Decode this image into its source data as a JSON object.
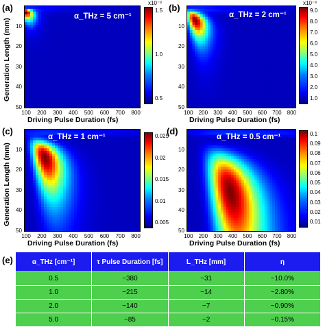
{
  "panels": [
    {
      "label": "(a)",
      "annotation": "α_THz = 5 cm⁻¹",
      "cb_exponent": "x10⁻³",
      "cb_ticks": [
        "1.5",
        "1.0",
        "0.5"
      ]
    },
    {
      "label": "(b)",
      "annotation": "α_THz = 2 cm⁻¹",
      "cb_exponent": "x10⁻³",
      "cb_ticks": [
        "9.0",
        "8.0",
        "7.0",
        "6.0",
        "5.0",
        "4.0",
        "3.0",
        "2.0",
        "1.0"
      ]
    },
    {
      "label": "(c)",
      "annotation": "α_THz = 1 cm⁻¹",
      "cb_exponent": "",
      "cb_ticks": [
        "0.025",
        "0.02",
        "0.015",
        "0.01",
        "0.005"
      ]
    },
    {
      "label": "(d)",
      "annotation": "α_THz = 0.5 cm⁻¹",
      "cb_exponent": "",
      "cb_ticks": [
        "0.1",
        "0.09",
        "0.08",
        "0.07",
        "0.06",
        "0.05",
        "0.04",
        "0.03",
        "0.02",
        "0.01"
      ]
    }
  ],
  "axes": {
    "xlabel": "Driving Pulse Duration (fs)",
    "ylabel": "Generation Length (mm)",
    "xticks": [
      "100",
      "200",
      "300",
      "400",
      "500",
      "600",
      "700",
      "800"
    ],
    "yticks_ab": [
      "10",
      "20",
      "30",
      "40",
      "50"
    ],
    "yticks_cd": [
      "10",
      "20",
      "30",
      "40",
      "50"
    ]
  },
  "table": {
    "label": "(e)",
    "headers": [
      "α_THz [cm⁻¹]",
      "τ Pulse Duration [fs]",
      "L_THz [mm]",
      "η"
    ],
    "rows": [
      [
        "0.5",
        "~380",
        "~31",
        "~10.0%"
      ],
      [
        "1.0",
        "~215",
        "~14",
        "~2.80%"
      ],
      [
        "2.0",
        "~140",
        "~7",
        "~0.90%"
      ],
      [
        "5.0",
        "~85",
        "~2",
        "~0.15%"
      ]
    ]
  },
  "chart_data": [
    {
      "type": "heatmap",
      "alpha_THz": 5,
      "xlim": [
        85,
        820
      ],
      "ylim": [
        50,
        0
      ],
      "cbar_range": [
        0,
        0.0017
      ],
      "peak": {
        "x": 90,
        "y": 3
      }
    },
    {
      "type": "heatmap",
      "alpha_THz": 2,
      "xlim": [
        85,
        820
      ],
      "ylim": [
        50,
        0
      ],
      "cbar_range": [
        0,
        0.0095
      ],
      "peak": {
        "x": 140,
        "y": 7
      }
    },
    {
      "type": "heatmap",
      "alpha_THz": 1,
      "xlim": [
        85,
        820
      ],
      "ylim": [
        50,
        0
      ],
      "cbar_range": [
        0,
        0.028
      ],
      "peak": {
        "x": 215,
        "y": 14
      }
    },
    {
      "type": "heatmap",
      "alpha_THz": 0.5,
      "xlim": [
        85,
        820
      ],
      "ylim": [
        50,
        0
      ],
      "cbar_range": [
        0,
        0.1
      ],
      "peak": {
        "x": 380,
        "y": 31
      }
    }
  ]
}
